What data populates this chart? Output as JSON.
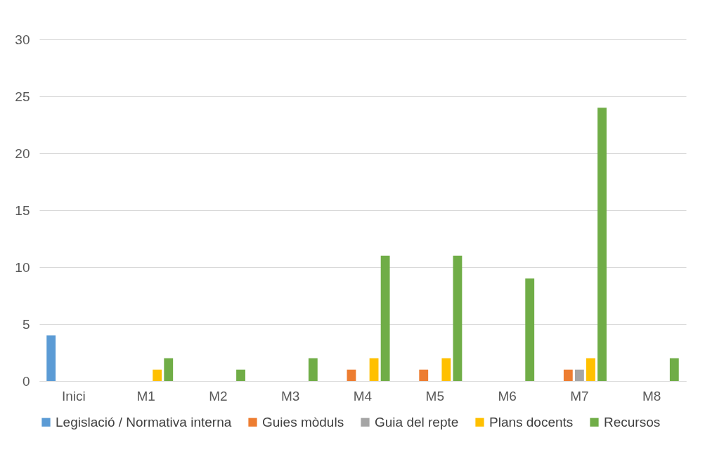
{
  "chart_data": {
    "type": "bar",
    "categories": [
      "Inici",
      "M1",
      "M2",
      "M3",
      "M4",
      "M5",
      "M6",
      "M7",
      "M8"
    ],
    "series": [
      {
        "name": "Legislació / Normativa interna",
        "color": "#5b9bd5",
        "values": [
          4,
          0,
          0,
          0,
          0,
          0,
          0,
          0,
          0
        ]
      },
      {
        "name": "Guies mòduls",
        "color": "#ed7d31",
        "values": [
          0,
          0,
          0,
          0,
          1,
          1,
          0,
          1,
          0
        ]
      },
      {
        "name": "Guia del repte",
        "color": "#a5a5a5",
        "values": [
          0,
          0,
          0,
          0,
          0,
          0,
          0,
          1,
          0
        ]
      },
      {
        "name": "Plans docents",
        "color": "#ffc000",
        "values": [
          0,
          1,
          0,
          0,
          2,
          2,
          0,
          2,
          0
        ]
      },
      {
        "name": "Recursos",
        "color": "#70ad47",
        "values": [
          0,
          2,
          1,
          2,
          11,
          11,
          9,
          24,
          2
        ]
      }
    ],
    "ylim": [
      0,
      30
    ],
    "yticks": [
      0,
      5,
      10,
      15,
      20,
      25,
      30
    ],
    "grid": "y",
    "legend": "bottom"
  }
}
